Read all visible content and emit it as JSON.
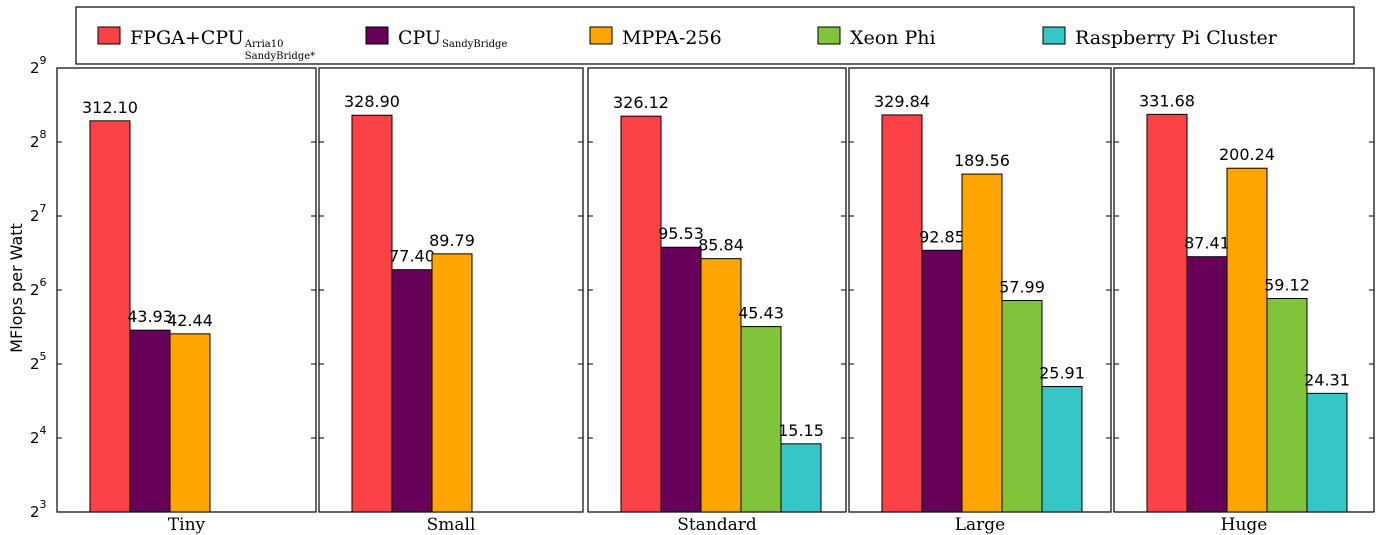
{
  "chart_data": {
    "type": "bar",
    "ylabel": "MFlops per Watt",
    "yscale": "log2",
    "ylim": [
      8,
      512
    ],
    "yticks": [
      {
        "value": 8,
        "base": "2",
        "exp": "3"
      },
      {
        "value": 16,
        "base": "2",
        "exp": "4"
      },
      {
        "value": 32,
        "base": "2",
        "exp": "5"
      },
      {
        "value": 64,
        "base": "2",
        "exp": "6"
      },
      {
        "value": 128,
        "base": "2",
        "exp": "7"
      },
      {
        "value": 256,
        "base": "2",
        "exp": "8"
      },
      {
        "value": 512,
        "base": "2",
        "exp": "9"
      }
    ],
    "legend_placement": "top",
    "series": [
      {
        "name": "FPGA+CPU",
        "sub1": "Arria10",
        "sub2": "SandyBridge*",
        "color": "#fc4246"
      },
      {
        "name": "CPU",
        "sub1": "SandyBridge",
        "sub2": "",
        "color": "#660059"
      },
      {
        "name": "MPPA-256",
        "sub1": "",
        "sub2": "",
        "color": "#ffa500"
      },
      {
        "name": "Xeon Phi",
        "sub1": "",
        "sub2": "",
        "color": "#7fc43b"
      },
      {
        "name": "Raspberry Pi Cluster",
        "sub1": "",
        "sub2": "",
        "color": "#36c6c6"
      }
    ],
    "panels": [
      {
        "category": "Tiny",
        "values": [
          312.1,
          43.93,
          42.44,
          null,
          null
        ],
        "labels": [
          "312.10",
          "43.93",
          "42.44",
          "",
          ""
        ]
      },
      {
        "category": "Small",
        "values": [
          328.9,
          77.4,
          89.79,
          null,
          null
        ],
        "labels": [
          "328.90",
          "77.40",
          "89.79",
          "",
          ""
        ]
      },
      {
        "category": "Standard",
        "values": [
          326.12,
          95.53,
          85.84,
          45.43,
          15.15
        ],
        "labels": [
          "326.12",
          "95.53",
          "85.84",
          "45.43",
          "15.15"
        ]
      },
      {
        "category": "Large",
        "values": [
          329.84,
          92.85,
          189.56,
          57.99,
          25.91
        ],
        "labels": [
          "329.84",
          "92.85",
          "189.56",
          "57.99",
          "25.91"
        ]
      },
      {
        "category": "Huge",
        "values": [
          331.68,
          87.41,
          200.24,
          59.12,
          24.31
        ],
        "labels": [
          "331.68",
          "87.41",
          "200.24",
          "59.12",
          "24.31"
        ]
      }
    ]
  }
}
